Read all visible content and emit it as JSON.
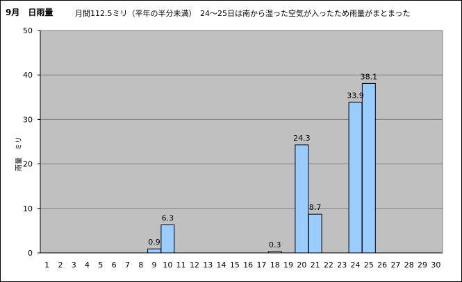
{
  "chart_data": {
    "type": "bar",
    "title": "9月　日雨量",
    "subtitle": "月間112.5ミリ（平年の半分未満）　24～25日は南から湿った空気が入ったため雨量がまとまった",
    "xlabel": "",
    "ylabel": "雨量　ミリ",
    "categories": [
      "1",
      "2",
      "3",
      "4",
      "5",
      "6",
      "7",
      "8",
      "9",
      "10",
      "11",
      "12",
      "13",
      "14",
      "15",
      "16",
      "17",
      "18",
      "19",
      "20",
      "21",
      "22",
      "23",
      "24",
      "25",
      "26",
      "27",
      "28",
      "29",
      "30"
    ],
    "values": [
      0,
      0,
      0,
      0,
      0,
      0,
      0,
      0,
      0.9,
      6.3,
      0,
      0,
      0,
      0,
      0,
      0,
      0,
      0.3,
      0,
      24.3,
      8.7,
      0,
      0,
      33.9,
      38.1,
      0,
      0,
      0,
      0,
      0
    ],
    "data_labels": [
      "",
      "",
      "",
      "",
      "",
      "",
      "",
      "",
      "0.9",
      "6.3",
      "",
      "",
      "",
      "",
      "",
      "",
      "",
      "0.3",
      "",
      "24.3",
      "8.7",
      "",
      "",
      "33.9",
      "38.1",
      "",
      "",
      "",
      "",
      ""
    ],
    "ylim": [
      0,
      50
    ],
    "yticks": [
      0,
      10,
      20,
      30,
      40,
      50
    ],
    "grid": true,
    "legend": "none",
    "colors": {
      "plot_background": "#c0c0c0",
      "bar_fill": "#99ccff",
      "bar_stroke": "#000000",
      "gridline": "#808080"
    }
  }
}
